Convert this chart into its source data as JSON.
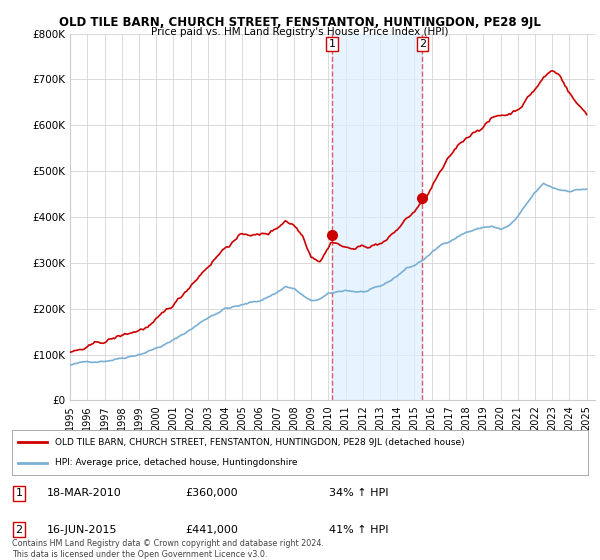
{
  "title": "OLD TILE BARN, CHURCH STREET, FENSTANTON, HUNTINGDON, PE28 9JL",
  "subtitle": "Price paid vs. HM Land Registry's House Price Index (HPI)",
  "legend_line1": "OLD TILE BARN, CHURCH STREET, FENSTANTON, HUNTINGDON, PE28 9JL (detached house)",
  "legend_line2": "HPI: Average price, detached house, Huntingdonshire",
  "ann1": {
    "num": "1",
    "date": "18-MAR-2010",
    "price": "£360,000",
    "pct": "34% ↑ HPI",
    "x": 2010.21
  },
  "ann2": {
    "num": "2",
    "date": "16-JUN-2015",
    "price": "£441,000",
    "pct": "41% ↑ HPI",
    "x": 2015.46
  },
  "ann1_price_y": 360000,
  "ann2_price_y": 441000,
  "footer": "Contains HM Land Registry data © Crown copyright and database right 2024.\nThis data is licensed under the Open Government Licence v3.0.",
  "red_line_color": "#cc0000",
  "blue_line_color": "#7aafd4",
  "vline_color": "#cc0000",
  "shade_color": "#ddeeff",
  "grid_color": "#cccccc",
  "background_color": "#ffffff",
  "ylim": [
    0,
    800000
  ],
  "xlim_start": 1995.0,
  "xlim_end": 2025.5,
  "yticks": [
    0,
    100000,
    200000,
    300000,
    400000,
    500000,
    600000,
    700000,
    800000
  ],
  "ytick_labels": [
    "£0",
    "£100K",
    "£200K",
    "£300K",
    "£400K",
    "£500K",
    "£600K",
    "£700K",
    "£800K"
  ],
  "xticks": [
    1995,
    1996,
    1997,
    1998,
    1999,
    2000,
    2001,
    2002,
    2003,
    2004,
    2005,
    2006,
    2007,
    2008,
    2009,
    2010,
    2011,
    2012,
    2013,
    2014,
    2015,
    2016,
    2017,
    2018,
    2019,
    2020,
    2021,
    2022,
    2023,
    2024,
    2025
  ]
}
